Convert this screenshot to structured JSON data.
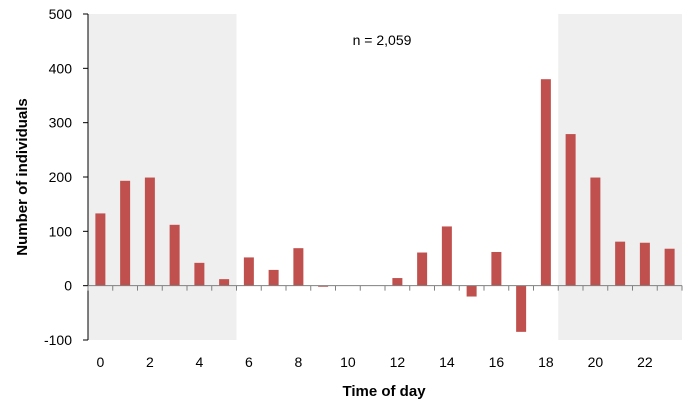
{
  "chart_data": {
    "type": "bar",
    "title": "",
    "xlabel": "Time of day",
    "ylabel": "Number of individuals",
    "annotation": "n = 2,059",
    "x": [
      0,
      1,
      2,
      3,
      4,
      5,
      6,
      7,
      8,
      9,
      10,
      11,
      12,
      13,
      14,
      15,
      16,
      17,
      18,
      19,
      20,
      21,
      22,
      23
    ],
    "values": [
      133,
      193,
      199,
      112,
      42,
      12,
      52,
      29,
      69,
      -2,
      0,
      0,
      14,
      61,
      109,
      -20,
      62,
      -85,
      380,
      279,
      199,
      81,
      79,
      68
    ],
    "xticks": [
      0,
      2,
      4,
      6,
      8,
      10,
      12,
      14,
      16,
      18,
      20,
      22
    ],
    "xtick_labels": [
      "0",
      "2",
      "4",
      "6",
      "8",
      "10",
      "12",
      "14",
      "16",
      "18",
      "20",
      "22"
    ],
    "ylim": [
      -100,
      500
    ],
    "yticks": [
      -100,
      0,
      100,
      200,
      300,
      400,
      500
    ],
    "ytick_labels": [
      "-100",
      "0",
      "100",
      "200",
      "300",
      "400",
      "500"
    ],
    "shaded_x_ranges": [
      [
        -0.5,
        5.5
      ],
      [
        18.5,
        23.5
      ]
    ],
    "grid": false,
    "legend": "none",
    "colors": {
      "bar": "#c0504d",
      "shade": "#efefef",
      "axis": "#000000"
    }
  }
}
